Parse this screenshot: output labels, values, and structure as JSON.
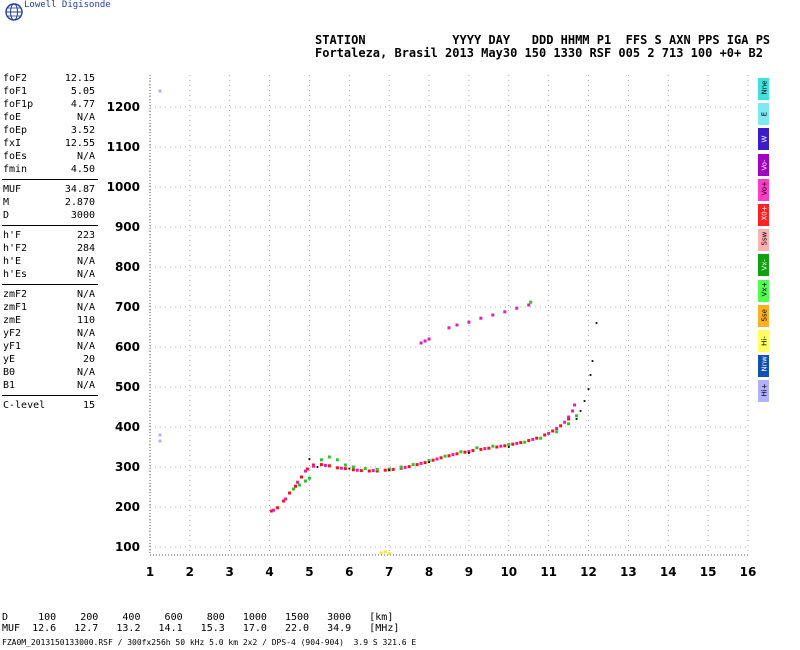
{
  "brand": "Lowell Digisonde",
  "header": {
    "line1": "STATION            YYYY DAY   DDD HHMM P1  FFS S AXN PPS IGA PS",
    "line2": "Fortaleza, Brasil 2013 May30 150 1330 RSF 005 2 713 100 +0+ B2"
  },
  "params": {
    "group1": [
      {
        "k": "foF2",
        "v": "12.15"
      },
      {
        "k": "foF1",
        "v": "5.05"
      },
      {
        "k": "foF1p",
        "v": "4.77"
      },
      {
        "k": "foE",
        "v": "N/A"
      },
      {
        "k": "foEp",
        "v": "3.52"
      },
      {
        "k": "fxI",
        "v": "12.55"
      },
      {
        "k": "foEs",
        "v": "N/A"
      },
      {
        "k": "fmin",
        "v": "4.50"
      }
    ],
    "group2": [
      {
        "k": "MUF",
        "v": "34.87"
      },
      {
        "k": "M",
        "v": "2.870"
      },
      {
        "k": "D",
        "v": "3000"
      }
    ],
    "group3": [
      {
        "k": "h'F",
        "v": "223"
      },
      {
        "k": "h'F2",
        "v": "284"
      },
      {
        "k": "h'E",
        "v": "N/A"
      },
      {
        "k": "h'Es",
        "v": "N/A"
      }
    ],
    "group4": [
      {
        "k": "zmF2",
        "v": "N/A"
      },
      {
        "k": "zmF1",
        "v": "N/A"
      },
      {
        "k": "zmE",
        "v": "110"
      },
      {
        "k": "yF2",
        "v": "N/A"
      },
      {
        "k": "yF1",
        "v": "N/A"
      },
      {
        "k": "yE",
        "v": "20"
      },
      {
        "k": "B0",
        "v": "N/A"
      },
      {
        "k": "B1",
        "v": "N/A"
      }
    ],
    "group5": [
      {
        "k": "C-level",
        "v": "15"
      }
    ]
  },
  "legend": [
    {
      "label": "Nne",
      "color": "#40e0e0"
    },
    {
      "label": "E",
      "color": "#80e8f0"
    },
    {
      "label": "W",
      "color": "#3a1cc8"
    },
    {
      "label": "Vo-",
      "color": "#a000c0"
    },
    {
      "label": "Vo+",
      "color": "#ff3cc8"
    },
    {
      "label": "X0+",
      "color": "#ff2020"
    },
    {
      "label": "Ssw",
      "color": "#ffb0b0"
    },
    {
      "label": "Vx-",
      "color": "#10a010"
    },
    {
      "label": "Vx+",
      "color": "#50ff50"
    },
    {
      "label": "Sse",
      "color": "#ffb020"
    },
    {
      "label": "Hi-",
      "color": "#ffff60"
    },
    {
      "label": "Nnw",
      "color": "#1050b0"
    },
    {
      "label": "Hi+",
      "color": "#b0b0ff"
    }
  ],
  "muf_table": {
    "line1": "D     100    200    400    600    800   1000   1500   3000   [km]",
    "line2": "MUF  12.6   12.7   13.2   14.1   15.3   17.0   22.0   34.9   [MHz]"
  },
  "footer": "FZA0M_2013150133000.RSF / 300fx256h 50 kHz 5.0 km 2x2 / DPS-4 (904-904)  3.9 S 321.6 E",
  "chart_data": {
    "type": "scatter",
    "title": "",
    "xlabel": "",
    "ylabel": "",
    "xlim": [
      1,
      16
    ],
    "ylim": [
      80,
      1280
    ],
    "x_ticks": [
      1,
      2,
      3,
      4,
      5,
      6,
      7,
      8,
      9,
      10,
      11,
      12,
      13,
      14,
      15,
      16
    ],
    "y_ticks": [
      100,
      200,
      300,
      400,
      500,
      600,
      700,
      800,
      900,
      1000,
      1100,
      1200
    ],
    "grid": true,
    "series": [
      {
        "color": "#ff1010",
        "points": [
          [
            4.05,
            190
          ],
          [
            4.2,
            198
          ],
          [
            4.35,
            215
          ],
          [
            4.5,
            235
          ],
          [
            4.65,
            252
          ],
          [
            4.8,
            275
          ],
          [
            4.95,
            295
          ],
          [
            5.1,
            305
          ],
          [
            5.3,
            306
          ],
          [
            5.5,
            303
          ],
          [
            5.7,
            298
          ],
          [
            5.9,
            296
          ],
          [
            6.1,
            293
          ],
          [
            6.3,
            291
          ],
          [
            6.5,
            290
          ],
          [
            6.7,
            290
          ],
          [
            6.9,
            292
          ],
          [
            7.1,
            294
          ],
          [
            7.3,
            297
          ],
          [
            7.5,
            301
          ],
          [
            7.7,
            306
          ],
          [
            7.9,
            311
          ],
          [
            8.1,
            317
          ],
          [
            8.3,
            323
          ],
          [
            8.5,
            328
          ],
          [
            8.7,
            333
          ],
          [
            8.9,
            337
          ],
          [
            9.1,
            341
          ],
          [
            9.3,
            344
          ],
          [
            9.5,
            347
          ],
          [
            9.7,
            350
          ],
          [
            9.9,
            353
          ],
          [
            10.1,
            357
          ],
          [
            10.3,
            361
          ],
          [
            10.5,
            366
          ],
          [
            10.7,
            372
          ],
          [
            10.9,
            380
          ],
          [
            11.1,
            390
          ],
          [
            11.3,
            403
          ],
          [
            11.5,
            420
          ]
        ]
      },
      {
        "color": "#e020b0",
        "points": [
          [
            4.1,
            192
          ],
          [
            4.4,
            220
          ],
          [
            4.7,
            262
          ],
          [
            4.9,
            290
          ],
          [
            5.1,
            302
          ],
          [
            5.4,
            304
          ],
          [
            5.8,
            297
          ],
          [
            6.2,
            292
          ],
          [
            6.6,
            291
          ],
          [
            7.0,
            293
          ],
          [
            7.4,
            299
          ],
          [
            7.8,
            309
          ],
          [
            8.2,
            320
          ],
          [
            8.6,
            331
          ],
          [
            9.0,
            339
          ],
          [
            9.4,
            346
          ],
          [
            9.8,
            352
          ],
          [
            10.2,
            359
          ],
          [
            10.6,
            369
          ],
          [
            11.0,
            384
          ],
          [
            11.2,
            396
          ],
          [
            11.4,
            412
          ],
          [
            11.5,
            425
          ],
          [
            11.6,
            440
          ],
          [
            11.65,
            455
          ],
          [
            7.8,
            610
          ],
          [
            7.9,
            615
          ],
          [
            8.0,
            620
          ],
          [
            8.5,
            648
          ],
          [
            8.7,
            655
          ],
          [
            9.0,
            662
          ],
          [
            9.3,
            672
          ],
          [
            9.6,
            680
          ],
          [
            9.9,
            688
          ],
          [
            10.2,
            697
          ],
          [
            10.5,
            705
          ]
        ]
      },
      {
        "color": "#30c030",
        "points": [
          [
            4.6,
            245
          ],
          [
            4.75,
            255
          ],
          [
            4.9,
            265
          ],
          [
            5.0,
            272
          ],
          [
            5.3,
            318
          ],
          [
            5.5,
            325
          ],
          [
            5.7,
            318
          ],
          [
            5.9,
            305
          ],
          [
            6.1,
            300
          ],
          [
            6.4,
            296
          ],
          [
            6.7,
            294
          ],
          [
            7.0,
            295
          ],
          [
            7.3,
            300
          ],
          [
            7.6,
            306
          ],
          [
            8.0,
            316
          ],
          [
            8.4,
            327
          ],
          [
            8.8,
            338
          ],
          [
            9.2,
            348
          ],
          [
            9.6,
            352
          ],
          [
            10.0,
            356
          ],
          [
            10.4,
            362
          ],
          [
            10.8,
            372
          ],
          [
            11.2,
            388
          ],
          [
            11.5,
            408
          ],
          [
            11.7,
            428
          ],
          [
            10.55,
            712
          ]
        ]
      },
      {
        "color": "#000000",
        "points": [
          [
            5.0,
            320
          ],
          [
            5.2,
            300
          ],
          [
            6.0,
            296
          ],
          [
            7.0,
            292
          ],
          [
            8.0,
            312
          ],
          [
            9.0,
            335
          ],
          [
            10.0,
            350
          ],
          [
            11.7,
            420
          ],
          [
            11.8,
            440
          ],
          [
            11.9,
            465
          ],
          [
            12.0,
            495
          ],
          [
            12.05,
            530
          ],
          [
            12.1,
            565
          ],
          [
            12.2,
            660
          ]
        ]
      },
      {
        "color": "#b0b0ff",
        "points": [
          [
            1.25,
            1240
          ],
          [
            1.25,
            380
          ],
          [
            1.25,
            365
          ]
        ]
      },
      {
        "color": "#ffe040",
        "points": [
          [
            6.8,
            85
          ],
          [
            6.9,
            88
          ],
          [
            7.0,
            84
          ]
        ]
      }
    ]
  }
}
